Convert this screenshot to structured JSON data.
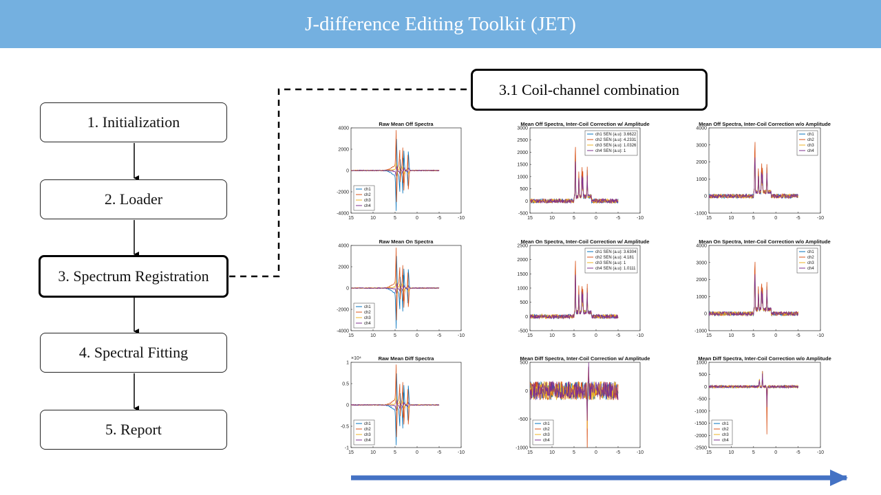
{
  "title": "J-difference Editing Toolkit (JET)",
  "colors": {
    "header": "#74b0e0",
    "progress_arrow": "#4472c4",
    "ch1": "#0072bd",
    "ch2": "#d95319",
    "ch3": "#edb120",
    "ch4": "#7e2f8e"
  },
  "steps": [
    {
      "label": "1. Initialization"
    },
    {
      "label": "2. Loader"
    },
    {
      "label": "3. Spectrum Registration"
    },
    {
      "label": "4. Spectral Fitting"
    },
    {
      "label": "5. Report"
    }
  ],
  "active_step": 3,
  "substep_label": "3.1 Coil-channel combination",
  "chart_data": [
    {
      "type": "line",
      "title": "Raw Mean Off Spectra",
      "xlim": [
        15,
        -10
      ],
      "xticks": [
        "15",
        "10",
        "5",
        "0",
        "-5",
        "-10"
      ],
      "ylim": [
        -4000,
        4000
      ],
      "yticks": [
        "4000",
        "2000",
        "0",
        "-2000",
        "-4000"
      ],
      "legend": [
        "ch1",
        "ch2",
        "ch3",
        "ch4"
      ],
      "legend_position": "bottom-left",
      "series": [
        {
          "name": "ch1"
        },
        {
          "name": "ch2"
        },
        {
          "name": "ch3"
        },
        {
          "name": "ch4"
        }
      ]
    },
    {
      "type": "line",
      "title": "Mean Off Spectra, Inter-Coil Correction w/ Amplitude",
      "xlim": [
        15,
        -10
      ],
      "xticks": [
        "15",
        "10",
        "5",
        "0",
        "-5",
        "-10"
      ],
      "ylim": [
        -500,
        3000
      ],
      "yticks": [
        "3000",
        "2500",
        "2000",
        "1500",
        "1000",
        "500",
        "0",
        "-500"
      ],
      "legend": [
        "ch1 SEN (a.u): 3.6622",
        "ch2 SEN (a.u): 4.2331",
        "ch3 SEN (a.u): 1.0326",
        "ch4 SEN (a.u): 1"
      ],
      "legend_position": "top-right",
      "series": [
        {
          "name": "ch1"
        },
        {
          "name": "ch2"
        },
        {
          "name": "ch3"
        },
        {
          "name": "ch4"
        }
      ]
    },
    {
      "type": "line",
      "title": "Mean Off Spectra, Inter-Coil Correction w/o Amplitude",
      "xlim": [
        15,
        -10
      ],
      "xticks": [
        "15",
        "10",
        "5",
        "0",
        "-5",
        "-10"
      ],
      "ylim": [
        -1000,
        4000
      ],
      "yticks": [
        "4000",
        "3000",
        "2000",
        "1000",
        "0",
        "-1000"
      ],
      "legend": [
        "ch1",
        "ch2",
        "ch3",
        "ch4"
      ],
      "legend_position": "top-right",
      "series": [
        {
          "name": "ch1"
        },
        {
          "name": "ch2"
        },
        {
          "name": "ch3"
        },
        {
          "name": "ch4"
        }
      ]
    },
    {
      "type": "line",
      "title": "Raw Mean On Spectra",
      "xlim": [
        15,
        -10
      ],
      "xticks": [
        "15",
        "10",
        "5",
        "0",
        "-5",
        "-10"
      ],
      "ylim": [
        -4000,
        4000
      ],
      "yticks": [
        "4000",
        "2000",
        "0",
        "-2000",
        "-4000"
      ],
      "legend": [
        "ch1",
        "ch2",
        "ch3",
        "ch4"
      ],
      "legend_position": "bottom-left",
      "series": [
        {
          "name": "ch1"
        },
        {
          "name": "ch2"
        },
        {
          "name": "ch3"
        },
        {
          "name": "ch4"
        }
      ]
    },
    {
      "type": "line",
      "title": "Mean On Spectra, Inter-Coil Correction w/ Amplitude",
      "xlim": [
        15,
        -10
      ],
      "xticks": [
        "15",
        "10",
        "5",
        "0",
        "-5",
        "-10"
      ],
      "ylim": [
        -500,
        2500
      ],
      "yticks": [
        "2500",
        "2000",
        "1500",
        "1000",
        "500",
        "0",
        "-500"
      ],
      "legend": [
        "ch1 SEN (a.u): 3.6304",
        "ch2 SEN (a.u): 4.181",
        "ch3 SEN (a.u): 1",
        "ch4 SEN (a.u): 1.0111"
      ],
      "legend_position": "top-right",
      "series": [
        {
          "name": "ch1"
        },
        {
          "name": "ch2"
        },
        {
          "name": "ch3"
        },
        {
          "name": "ch4"
        }
      ]
    },
    {
      "type": "line",
      "title": "Mean On Spectra, Inter-Coil Correction w/o Amplitude",
      "xlim": [
        15,
        -10
      ],
      "xticks": [
        "15",
        "10",
        "5",
        "0",
        "-5",
        "-10"
      ],
      "ylim": [
        -1000,
        4000
      ],
      "yticks": [
        "4000",
        "3000",
        "2000",
        "1000",
        "0",
        "-1000"
      ],
      "legend": [
        "ch1",
        "ch2",
        "ch3",
        "ch4"
      ],
      "legend_position": "top-right",
      "series": [
        {
          "name": "ch1"
        },
        {
          "name": "ch2"
        },
        {
          "name": "ch3"
        },
        {
          "name": "ch4"
        }
      ]
    },
    {
      "type": "line",
      "title": "Raw Mean Diff Spectra",
      "xlim": [
        15,
        -10
      ],
      "xticks": [
        "15",
        "10",
        "5",
        "0",
        "-5",
        "-10"
      ],
      "ylim": [
        -1,
        1
      ],
      "yticks": [
        "1",
        "0.5",
        "0",
        "-0.5",
        "-1"
      ],
      "y_multiplier": "×10⁴",
      "legend": [
        "ch1",
        "ch2",
        "ch3",
        "ch4"
      ],
      "legend_position": "bottom-left",
      "series": [
        {
          "name": "ch1"
        },
        {
          "name": "ch2"
        },
        {
          "name": "ch3"
        },
        {
          "name": "ch4"
        }
      ]
    },
    {
      "type": "line",
      "title": "Mean Diff Spectra, Inter-Coil Correction w/ Amplitude",
      "xlim": [
        15,
        -10
      ],
      "xticks": [
        "15",
        "10",
        "5",
        "0",
        "-5",
        "-10"
      ],
      "ylim": [
        -1000,
        500
      ],
      "yticks": [
        "500",
        "0",
        "-500",
        "-1000"
      ],
      "legend": [
        "ch1",
        "ch2",
        "ch3",
        "ch4"
      ],
      "legend_position": "bottom-left",
      "series": [
        {
          "name": "ch1"
        },
        {
          "name": "ch2"
        },
        {
          "name": "ch3"
        },
        {
          "name": "ch4"
        }
      ]
    },
    {
      "type": "line",
      "title": "Mean Diff Spectra, Inter-Coil Correction w/o Amplitude",
      "xlim": [
        15,
        -10
      ],
      "xticks": [
        "15",
        "10",
        "5",
        "0",
        "-5",
        "-10"
      ],
      "ylim": [
        -2500,
        1000
      ],
      "yticks": [
        "1000",
        "500",
        "0",
        "-500",
        "-1000",
        "-1500",
        "-2000",
        "-2500"
      ],
      "legend": [
        "ch1",
        "ch2",
        "ch3",
        "ch4"
      ],
      "legend_position": "bottom-left",
      "series": [
        {
          "name": "ch1"
        },
        {
          "name": "ch2"
        },
        {
          "name": "ch3"
        },
        {
          "name": "ch4"
        }
      ]
    }
  ]
}
